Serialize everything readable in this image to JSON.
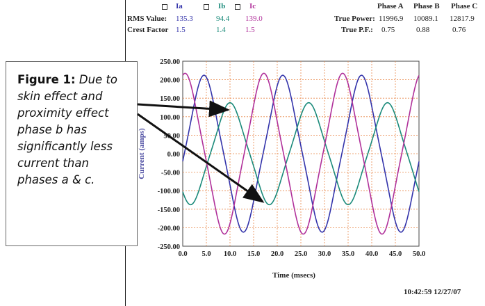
{
  "header": {
    "legend": [
      {
        "label": "Ia",
        "color": "#3333aa"
      },
      {
        "label": "Ib",
        "color": "#1a8a7a"
      },
      {
        "label": "Ic",
        "color": "#b0309a"
      }
    ],
    "rms_label": "RMS Value:",
    "rms_values": [
      "135.3",
      "94.4",
      "139.0"
    ],
    "crest_label": "Crest Factor",
    "crest_values": [
      "1.5",
      "1.4",
      "1.5"
    ],
    "phase_headers": [
      "Phase A",
      "Phase B",
      "Phase C"
    ],
    "true_power_label": "True Power:",
    "true_power_values": [
      "11996.9",
      "10089.1",
      "12817.9"
    ],
    "true_pf_label": "True P.F.:",
    "true_pf_values": [
      "0.75",
      "0.88",
      "0.76"
    ]
  },
  "timestamp": "10:42:59 12/27/07",
  "callout": {
    "label": "Figure 1:",
    "text": "Due to skin effect and proximity effect phase b has significantly less current than phases a & c."
  },
  "chart_data": {
    "type": "line",
    "xlabel": "Time (msecs)",
    "ylabel": "Current (amps)",
    "xlim": [
      0,
      50
    ],
    "ylim": [
      -250,
      250
    ],
    "x_ticks": [
      "0.0",
      "5.0",
      "10.0",
      "15.0",
      "20.0",
      "25.0",
      "30.0",
      "35.0",
      "40.0",
      "45.0",
      "50.0"
    ],
    "y_ticks": [
      "250.00",
      "200.00",
      "150.00",
      "100.00",
      "50.00",
      "0.00",
      "-50.00",
      "-100.00",
      "-150.00",
      "-200.00",
      "-250.00"
    ],
    "grid": true,
    "series": [
      {
        "name": "Ia",
        "color": "#3333aa",
        "amplitude": 200,
        "period_ms": 16.67,
        "peak_at_ms": 4.5
      },
      {
        "name": "Ib",
        "color": "#1a8a7a",
        "amplitude": 130,
        "period_ms": 16.67,
        "peak_at_ms": 10.0
      },
      {
        "name": "Ic",
        "color": "#b0309a",
        "amplitude": 205,
        "period_ms": 16.67,
        "peak_at_ms": 0.5
      }
    ]
  }
}
